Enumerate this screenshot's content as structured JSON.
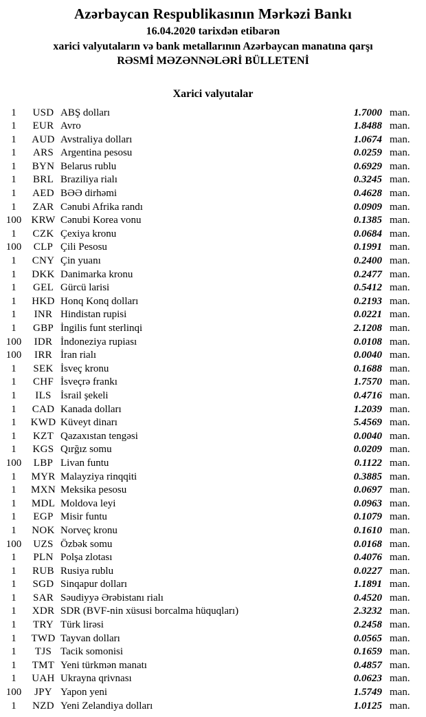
{
  "header": {
    "bank_title": "Azərbaycan Respublikasının Mərkəzi Bankı",
    "date_line": "16.04.2020 tarixdən etibarən",
    "subtitle": "xarici valyutaların və bank metallarının Azərbaycan manatına qarşı",
    "bulletin_title": "RƏSMİ MƏZƏNNƏLƏRİ BÜLLETENİ"
  },
  "section": {
    "title": "Xarici valyutalar"
  },
  "table": {
    "unit_label": "man.",
    "rows": [
      {
        "qty": "1",
        "code": "USD",
        "name": "ABŞ dolları",
        "rate": "1.7000"
      },
      {
        "qty": "1",
        "code": "EUR",
        "name": "Avro",
        "rate": "1.8488"
      },
      {
        "qty": "1",
        "code": "AUD",
        "name": "Avstraliya dolları",
        "rate": "1.0674"
      },
      {
        "qty": "1",
        "code": "ARS",
        "name": "Argentina pesosu",
        "rate": "0.0259"
      },
      {
        "qty": "1",
        "code": "BYN",
        "name": "Belarus rublu",
        "rate": "0.6929"
      },
      {
        "qty": "1",
        "code": "BRL",
        "name": "Braziliya rialı",
        "rate": "0.3245"
      },
      {
        "qty": "1",
        "code": "AED",
        "name": "BƏƏ dirhəmi",
        "rate": "0.4628"
      },
      {
        "qty": "1",
        "code": "ZAR",
        "name": "Cənubi Afrika randı",
        "rate": "0.0909"
      },
      {
        "qty": "100",
        "code": "KRW",
        "name": "Cənubi Korea vonu",
        "rate": "0.1385"
      },
      {
        "qty": "1",
        "code": "CZK",
        "name": "Çexiya kronu",
        "rate": "0.0684"
      },
      {
        "qty": "100",
        "code": "CLP",
        "name": "Çili Pesosu",
        "rate": "0.1991"
      },
      {
        "qty": "1",
        "code": "CNY",
        "name": "Çin yuanı",
        "rate": "0.2400"
      },
      {
        "qty": "1",
        "code": "DKK",
        "name": "Danimarka kronu",
        "rate": "0.2477"
      },
      {
        "qty": "1",
        "code": "GEL",
        "name": "Gürcü larisi",
        "rate": "0.5412"
      },
      {
        "qty": "1",
        "code": "HKD",
        "name": "Honq Konq dolları",
        "rate": "0.2193"
      },
      {
        "qty": "1",
        "code": "INR",
        "name": "Hindistan rupisi",
        "rate": "0.0221"
      },
      {
        "qty": "1",
        "code": "GBP",
        "name": "İngilis funt sterlinqi",
        "rate": "2.1208"
      },
      {
        "qty": "100",
        "code": "IDR",
        "name": "İndoneziya rupiası",
        "rate": "0.0108"
      },
      {
        "qty": "100",
        "code": "IRR",
        "name": "İran rialı",
        "rate": "0.0040"
      },
      {
        "qty": "1",
        "code": "SEK",
        "name": "İsveç kronu",
        "rate": "0.1688"
      },
      {
        "qty": "1",
        "code": "CHF",
        "name": "İsveçrə frankı",
        "rate": "1.7570"
      },
      {
        "qty": "1",
        "code": "ILS",
        "name": "İsrail şekeli",
        "rate": "0.4716"
      },
      {
        "qty": "1",
        "code": "CAD",
        "name": "Kanada dolları",
        "rate": "1.2039"
      },
      {
        "qty": "1",
        "code": "KWD",
        "name": "Küveyt dinarı",
        "rate": "5.4569"
      },
      {
        "qty": "1",
        "code": "KZT",
        "name": "Qazaxıstan tengəsi",
        "rate": "0.0040"
      },
      {
        "qty": "1",
        "code": "KGS",
        "name": "Qırğız somu",
        "rate": "0.0209"
      },
      {
        "qty": "100",
        "code": "LBP",
        "name": "Livan funtu",
        "rate": "0.1122"
      },
      {
        "qty": "1",
        "code": "MYR",
        "name": "Malayziya rinqqiti",
        "rate": "0.3885"
      },
      {
        "qty": "1",
        "code": "MXN",
        "name": "Meksika pesosu",
        "rate": "0.0697"
      },
      {
        "qty": "1",
        "code": "MDL",
        "name": "Moldova leyi",
        "rate": "0.0963"
      },
      {
        "qty": "1",
        "code": "EGP",
        "name": "Misir funtu",
        "rate": "0.1079"
      },
      {
        "qty": "1",
        "code": "NOK",
        "name": "Norveç kronu",
        "rate": "0.1610"
      },
      {
        "qty": "100",
        "code": "UZS",
        "name": "Özbək somu",
        "rate": "0.0168"
      },
      {
        "qty": "1",
        "code": "PLN",
        "name": "Polşa zlotası",
        "rate": "0.4076"
      },
      {
        "qty": "1",
        "code": "RUB",
        "name": "Rusiya rublu",
        "rate": "0.0227"
      },
      {
        "qty": "1",
        "code": "SGD",
        "name": "Sinqapur dolları",
        "rate": "1.1891"
      },
      {
        "qty": "1",
        "code": "SAR",
        "name": "Səudiyyə Ərəbistanı rialı",
        "rate": "0.4520"
      },
      {
        "qty": "1",
        "code": "XDR",
        "name": "SDR (BVF-nin xüsusi borcalma hüquqları)",
        "rate": "2.3232"
      },
      {
        "qty": "1",
        "code": "TRY",
        "name": "Türk lirəsi",
        "rate": "0.2458"
      },
      {
        "qty": "1",
        "code": "TWD",
        "name": "Tayvan dolları",
        "rate": "0.0565"
      },
      {
        "qty": "1",
        "code": "TJS",
        "name": "Tacik somonisi",
        "rate": "0.1659"
      },
      {
        "qty": "1",
        "code": "TMT",
        "name": "Yeni türkmən manatı",
        "rate": "0.4857"
      },
      {
        "qty": "1",
        "code": "UAH",
        "name": "Ukrayna qrivnası",
        "rate": "0.0623"
      },
      {
        "qty": "100",
        "code": "JPY",
        "name": "Yapon yeni",
        "rate": "1.5749"
      },
      {
        "qty": "1",
        "code": "NZD",
        "name": "Yeni Zelandiya dolları",
        "rate": "1.0125"
      }
    ]
  },
  "colors": {
    "text": "#000000",
    "background": "#ffffff"
  }
}
